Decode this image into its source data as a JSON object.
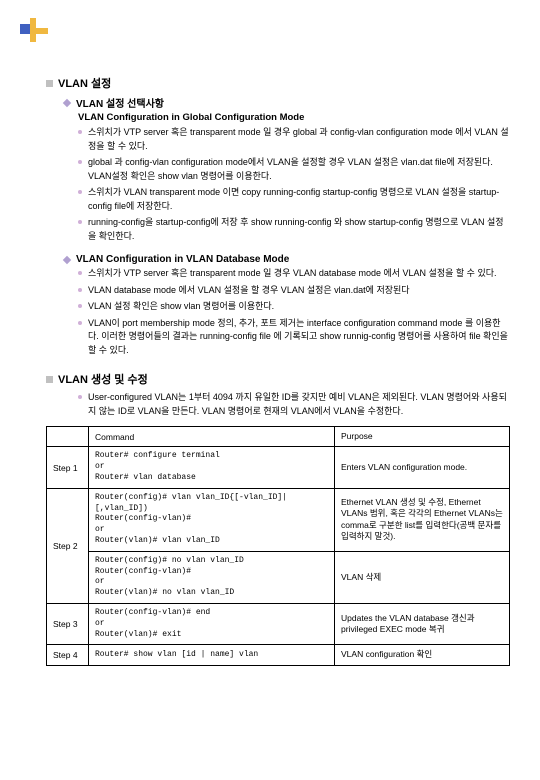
{
  "section1": {
    "title": "VLAN 설정",
    "sub1": {
      "title": "VLAN 설정 선택사항",
      "heading": "VLAN Configuration in Global Configuration Mode",
      "items": [
        "스위치가 VTP server 혹은 transparent mode 일 경우 global 과 config-vlan configuration mode 에서 VLAN 설정을 할 수 있다.",
        "global 과 config-vlan configuration mode에서 VLAN을 설정할 경우 VLAN 설정은 vlan.dat file에 저장된다. VLAN설정 확인은 show vlan 명령어를 이용한다.",
        "스위치가 VLAN transparent mode 이면 copy running-config startup-config 명령으로 VLAN 설정을 startup-config file에 저장한다.",
        "running-config을 startup-config에 저장 후 show running-config 와 show startup-config 명령으로 VLAN 설정을 확인한다."
      ]
    },
    "sub2": {
      "title": "VLAN Configuration in VLAN Database Mode",
      "items": [
        "스위치가 VTP server 혹은 transparent mode 일 경우 VLAN database mode 에서 VLAN 설정을 할 수 있다.",
        "VLAN database mode 에서 VLAN 설정을 할 경우 VLAN 설정은 vlan.dat에 저장된다",
        "VLAN 설정 확인은 show vlan 명령어를 이용한다.",
        "VLAN이 port membership mode 정의, 추가, 포트 제거는 interface configuration command mode 를 이용한다. 이러한 명령어들의 결과는 running-config file 에 기록되고 show runnig-config 명령어를 사용하여 file 확인을 할 수 있다."
      ]
    }
  },
  "section2": {
    "title": "VLAN 생성 및 수정",
    "items": [
      "User-configured VLAN는 1부터 4094 까지 유일한 ID를 갖지만 예비 VLAN은 제외된다. VLAN 명령어와 사용되지 않는 ID로 VLAN을 만든다. VLAN 명령어로 현재의 VLAN에서 VLAN을 수정한다."
    ]
  },
  "table": {
    "headers": [
      "",
      "Command",
      "Purpose"
    ],
    "rows": [
      {
        "step": "Step 1",
        "cmd": "Router# configure terminal\nor\nRouter# vlan database",
        "purpose": "Enters VLAN configuration mode."
      },
      {
        "step": "Step 2",
        "cmd": "Router(config)# vlan vlan_ID{[-vlan_ID]|[,vlan_ID])\nRouter(config-vlan)#\nor\nRouter(vlan)# vlan vlan_ID",
        "purpose": "Ethernet VLAN 생성 및 수정, Ethernet VLANs 범위, 혹은 각각의 Ethernet VLANs는 comma로 구분한 list를 입력한다(공백 문자를 입력하지 말것)."
      },
      {
        "step": "",
        "cmd": "Router(config)# no vlan vlan_ID\nRouter(config-vlan)#\nor\nRouter(vlan)# no vlan vlan_ID",
        "purpose": "VLAN 삭제"
      },
      {
        "step": "Step 3",
        "cmd": "Router(config-vlan)# end\nor\nRouter(vlan)# exit",
        "purpose": "Updates the VLAN database 갱신과 privileged EXEC mode 복귀"
      },
      {
        "step": "Step 4",
        "cmd": "Router# show vlan [id | name] vlan",
        "purpose": "VLAN configuration 확인"
      }
    ]
  }
}
